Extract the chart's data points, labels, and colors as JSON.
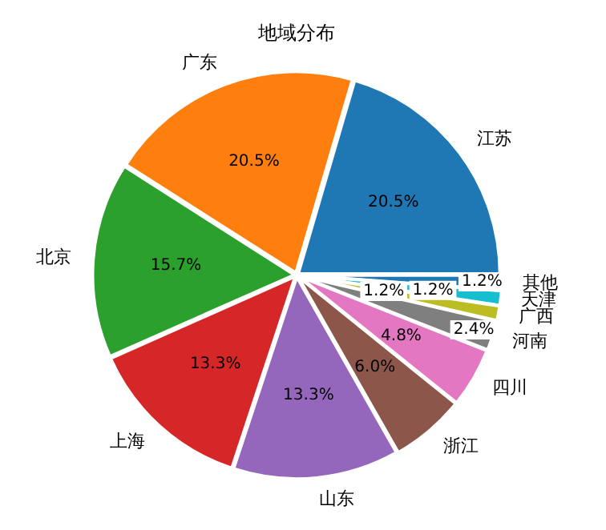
{
  "chart_data": {
    "type": "pie",
    "title": "地域分布",
    "categories": [
      "江苏",
      "广东",
      "北京",
      "上海",
      "山东",
      "浙江",
      "四川",
      "河南",
      "广西",
      "天津",
      "其他"
    ],
    "values": [
      20.5,
      20.5,
      15.7,
      13.3,
      13.3,
      6.0,
      4.8,
      2.4,
      1.2,
      1.2,
      1.2
    ],
    "value_labels": [
      "20.5%",
      "20.5%",
      "15.7%",
      "13.3%",
      "13.3%",
      "6.0%",
      "4.8%",
      "2.4%",
      "1.2%",
      "1.2%",
      "1.2%"
    ],
    "colors": [
      "#1f77b4",
      "#ff7f0e",
      "#2ca02c",
      "#d62728",
      "#9467bd",
      "#8c564b",
      "#e377c2",
      "#7f7f7f",
      "#bcbd22",
      "#17becf",
      "#1f77b4"
    ],
    "legend": false
  }
}
